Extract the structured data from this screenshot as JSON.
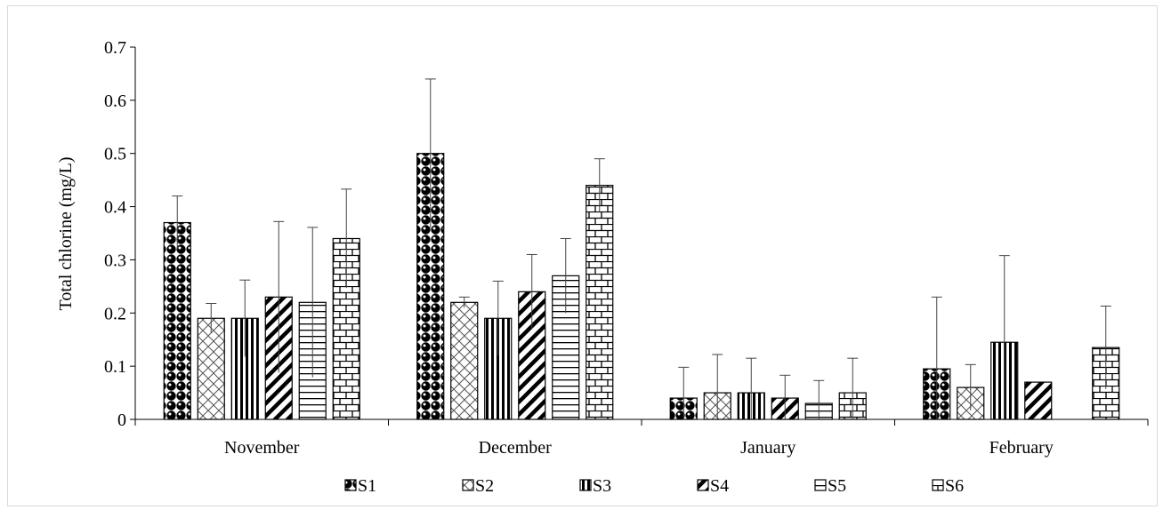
{
  "chart_data": {
    "type": "bar",
    "ylabel": "Total chlorine (mg/L)",
    "ylim": [
      0,
      0.7
    ],
    "yticks": [
      "0",
      "0.1",
      "0.2",
      "0.3",
      "0.4",
      "0.5",
      "0.6",
      "0.7"
    ],
    "categories": [
      "November",
      "December",
      "January",
      "February"
    ],
    "legend_position": "bottom",
    "series": [
      {
        "name": "S1",
        "pattern": "dots",
        "values": [
          0.37,
          0.5,
          0.04,
          0.095
        ],
        "errors": [
          0.05,
          0.14,
          0.058,
          0.135
        ]
      },
      {
        "name": "S2",
        "pattern": "crosshatch",
        "values": [
          0.19,
          0.22,
          0.05,
          0.06
        ],
        "errors": [
          0.028,
          0.01,
          0.072,
          0.043
        ]
      },
      {
        "name": "S3",
        "pattern": "vertical",
        "values": [
          0.19,
          0.19,
          0.05,
          0.145
        ],
        "errors": [
          0.072,
          0.07,
          0.065,
          0.163
        ]
      },
      {
        "name": "S4",
        "pattern": "diagonal",
        "values": [
          0.23,
          0.24,
          0.04,
          0.07
        ],
        "errors": [
          0.142,
          0.07,
          0.043,
          0
        ]
      },
      {
        "name": "S5",
        "pattern": "horizontal",
        "values": [
          0.22,
          0.27,
          0.03,
          0
        ],
        "errors": [
          0.141,
          0.07,
          0.043,
          0
        ]
      },
      {
        "name": "S6",
        "pattern": "brick",
        "values": [
          0.34,
          0.44,
          0.05,
          0.135
        ],
        "errors": [
          0.093,
          0.05,
          0.065,
          0.078
        ]
      }
    ]
  }
}
